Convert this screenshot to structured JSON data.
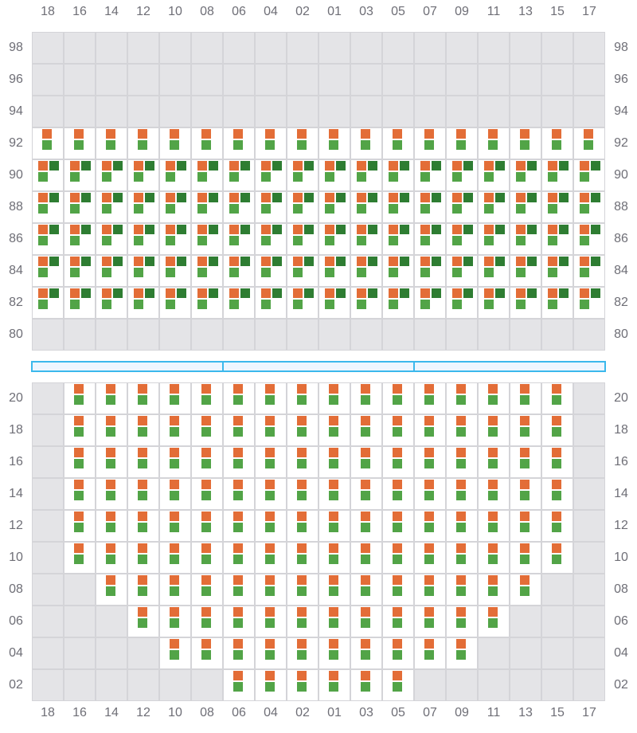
{
  "columns": [
    "18",
    "16",
    "14",
    "12",
    "10",
    "08",
    "06",
    "04",
    "02",
    "01",
    "03",
    "05",
    "07",
    "09",
    "11",
    "13",
    "15",
    "17"
  ],
  "colors": {
    "orange": "#e36d37",
    "green": "#52a447",
    "dark_green": "#2e7d32",
    "empty": "#e4e4e7",
    "grid": "#d4d4d8",
    "bar_border": "#3bb8ec",
    "bar_fill": "#eef6ff"
  },
  "top_section": {
    "rows": [
      {
        "label": "98",
        "slots": "empty"
      },
      {
        "label": "96",
        "slots": "empty"
      },
      {
        "label": "94",
        "slots": "empty"
      },
      {
        "label": "92",
        "slots": "orange-green"
      },
      {
        "label": "90",
        "slots": "orange-darkgreen-green"
      },
      {
        "label": "88",
        "slots": "orange-darkgreen-green"
      },
      {
        "label": "86",
        "slots": "orange-darkgreen-green"
      },
      {
        "label": "84",
        "slots": "orange-darkgreen-green"
      },
      {
        "label": "82",
        "slots": "orange-darkgreen-green"
      },
      {
        "label": "80",
        "slots": "empty"
      }
    ]
  },
  "divider_bar": {
    "segments": 3
  },
  "bottom_section": {
    "rows": [
      {
        "label": "20",
        "active_from": "16",
        "active_to": "15"
      },
      {
        "label": "18",
        "active_from": "16",
        "active_to": "15"
      },
      {
        "label": "16",
        "active_from": "16",
        "active_to": "15"
      },
      {
        "label": "14",
        "active_from": "16",
        "active_to": "15"
      },
      {
        "label": "12",
        "active_from": "16",
        "active_to": "15"
      },
      {
        "label": "10",
        "active_from": "16",
        "active_to": "15"
      },
      {
        "label": "08",
        "active_from": "14",
        "active_to": "13"
      },
      {
        "label": "06",
        "active_from": "12",
        "active_to": "11"
      },
      {
        "label": "04",
        "active_from": "10",
        "active_to": "09"
      },
      {
        "label": "02",
        "active_from": "06",
        "active_to": "05"
      }
    ]
  }
}
